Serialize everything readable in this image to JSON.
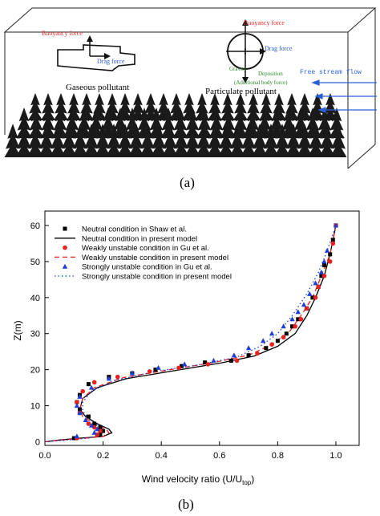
{
  "panel_a": {
    "caption": "(a)",
    "buoyancy_left": "Buoyancy force",
    "drag_left": "Drag force",
    "gaseous_label": "Gaseous pollutant",
    "buoyancy_right": "Buoyancy force",
    "drag_right": "Drag force",
    "gravity_label": "Gravity",
    "deposition_label": "Deposition",
    "additional_label": "(Additional body force)",
    "particulate_label": "Particulate pollutant",
    "free_stream_label": "Free stream flow",
    "colors": {
      "force": "#e0302a",
      "drag": "#2a5fd6",
      "gravity": "#2e8b2e",
      "tree": "#1a1a1a"
    }
  },
  "panel_b": {
    "caption": "(b)"
  },
  "chart_data": {
    "type": "line",
    "xlabel": "Wind velocity ratio (U/U",
    "xlabel_sub": "top",
    "xlabel_end": ")",
    "ylabel": "Z(m)",
    "xlim": [
      0.0,
      1.08
    ],
    "ylim": [
      -1,
      64
    ],
    "xticks": [
      "0.0",
      "0.2",
      "0.4",
      "0.6",
      "0.8",
      "1.0"
    ],
    "yticks": [
      "0",
      "10",
      "20",
      "30",
      "40",
      "50",
      "60"
    ],
    "legend_position": "top-left",
    "series": [
      {
        "name": "Neutral condition in Shaw et al.",
        "marker": "square",
        "color": "#000000",
        "points": [
          [
            0.1,
            1
          ],
          [
            0.19,
            2
          ],
          [
            0.2,
            3
          ],
          [
            0.19,
            4
          ],
          [
            0.17,
            5
          ],
          [
            0.15,
            7
          ],
          [
            0.12,
            9
          ],
          [
            0.11,
            11
          ],
          [
            0.12,
            13
          ],
          [
            0.15,
            16
          ],
          [
            0.22,
            18
          ],
          [
            0.3,
            19
          ],
          [
            0.38,
            20
          ],
          [
            0.47,
            21
          ],
          [
            0.55,
            22
          ],
          [
            0.64,
            22.5
          ],
          [
            0.7,
            24
          ],
          [
            0.76,
            26
          ],
          [
            0.8,
            28
          ],
          [
            0.83,
            30
          ],
          [
            0.85,
            32
          ],
          [
            0.87,
            34
          ],
          [
            0.9,
            37
          ],
          [
            0.92,
            40
          ],
          [
            0.94,
            43
          ],
          [
            0.95,
            46
          ],
          [
            0.96,
            49
          ],
          [
            0.98,
            52
          ],
          [
            0.99,
            56
          ],
          [
            1.0,
            60
          ]
        ]
      },
      {
        "name": "Neutral condition in present model",
        "line": "solid",
        "color": "#000000",
        "points": [
          [
            0.0,
            0
          ],
          [
            0.05,
            0.5
          ],
          [
            0.12,
            1
          ],
          [
            0.2,
            1.5
          ],
          [
            0.23,
            2.5
          ],
          [
            0.22,
            3.5
          ],
          [
            0.18,
            5
          ],
          [
            0.14,
            7
          ],
          [
            0.12,
            9
          ],
          [
            0.13,
            12
          ],
          [
            0.18,
            15
          ],
          [
            0.28,
            17.5
          ],
          [
            0.45,
            19.8
          ],
          [
            0.6,
            21.8
          ],
          [
            0.72,
            23.8
          ],
          [
            0.8,
            26.5
          ],
          [
            0.86,
            30
          ],
          [
            0.9,
            35
          ],
          [
            0.93,
            40
          ],
          [
            0.96,
            46
          ],
          [
            0.98,
            52
          ],
          [
            1.0,
            60
          ]
        ]
      },
      {
        "name": "Weakly unstable condition in Gu et al.",
        "marker": "circle",
        "color": "#e8201e",
        "points": [
          [
            0.11,
            1
          ],
          [
            0.18,
            2
          ],
          [
            0.19,
            3
          ],
          [
            0.17,
            4
          ],
          [
            0.15,
            5
          ],
          [
            0.12,
            8
          ],
          [
            0.11,
            11
          ],
          [
            0.13,
            14
          ],
          [
            0.17,
            16.5
          ],
          [
            0.25,
            18
          ],
          [
            0.36,
            19.5
          ],
          [
            0.46,
            20.5
          ],
          [
            0.56,
            21.5
          ],
          [
            0.66,
            22.5
          ],
          [
            0.73,
            24.5
          ],
          [
            0.78,
            27
          ],
          [
            0.82,
            29
          ],
          [
            0.86,
            32
          ],
          [
            0.88,
            34
          ],
          [
            0.9,
            37
          ],
          [
            0.93,
            40
          ],
          [
            0.94,
            43
          ],
          [
            0.96,
            46
          ],
          [
            0.98,
            50
          ],
          [
            0.99,
            55
          ],
          [
            1.0,
            60
          ]
        ]
      },
      {
        "name": "Weakly unstable condition in present model",
        "line": "dashed",
        "color": "#e8201e",
        "points": [
          [
            0.0,
            0
          ],
          [
            0.06,
            0.5
          ],
          [
            0.14,
            1
          ],
          [
            0.2,
            1.5
          ],
          [
            0.22,
            2.5
          ],
          [
            0.21,
            3.5
          ],
          [
            0.17,
            5
          ],
          [
            0.13,
            7
          ],
          [
            0.12,
            9
          ],
          [
            0.13,
            12
          ],
          [
            0.17,
            15
          ],
          [
            0.27,
            17.8
          ],
          [
            0.43,
            20
          ],
          [
            0.58,
            22
          ],
          [
            0.7,
            24
          ],
          [
            0.78,
            27
          ],
          [
            0.84,
            30.5
          ],
          [
            0.88,
            35
          ],
          [
            0.92,
            40
          ],
          [
            0.95,
            46
          ],
          [
            0.98,
            52
          ],
          [
            1.0,
            60
          ]
        ]
      },
      {
        "name": "Strongly unstable condition in Gu et al.",
        "marker": "triangle",
        "color": "#1f3fd6",
        "points": [
          [
            0.11,
            1.5
          ],
          [
            0.17,
            2.5
          ],
          [
            0.18,
            3.5
          ],
          [
            0.16,
            4.5
          ],
          [
            0.14,
            6
          ],
          [
            0.12,
            8
          ],
          [
            0.11,
            10
          ],
          [
            0.12,
            12.5
          ],
          [
            0.16,
            15
          ],
          [
            0.22,
            17.5
          ],
          [
            0.3,
            19
          ],
          [
            0.39,
            20.5
          ],
          [
            0.48,
            21.5
          ],
          [
            0.58,
            22.5
          ],
          [
            0.65,
            24
          ],
          [
            0.7,
            26
          ],
          [
            0.75,
            28
          ],
          [
            0.78,
            30
          ],
          [
            0.82,
            32
          ],
          [
            0.85,
            34
          ],
          [
            0.87,
            36
          ],
          [
            0.89,
            38
          ],
          [
            0.91,
            41
          ],
          [
            0.93,
            44
          ],
          [
            0.95,
            47
          ],
          [
            0.96,
            50
          ],
          [
            0.97,
            53
          ],
          [
            1.0,
            60
          ]
        ]
      },
      {
        "name": "Strongly unstable condition in present model",
        "line": "dotted",
        "color": "#1f3fd6",
        "points": [
          [
            0.0,
            0
          ],
          [
            0.08,
            0.5
          ],
          [
            0.15,
            1
          ],
          [
            0.19,
            2
          ],
          [
            0.2,
            3
          ],
          [
            0.18,
            4.5
          ],
          [
            0.15,
            6.5
          ],
          [
            0.13,
            8.5
          ],
          [
            0.13,
            11
          ],
          [
            0.16,
            14
          ],
          [
            0.24,
            17
          ],
          [
            0.38,
            19.5
          ],
          [
            0.54,
            21.5
          ],
          [
            0.66,
            23.5
          ],
          [
            0.74,
            26.5
          ],
          [
            0.8,
            30
          ],
          [
            0.85,
            35
          ],
          [
            0.9,
            41
          ],
          [
            0.94,
            47
          ],
          [
            0.97,
            53
          ],
          [
            1.0,
            60
          ]
        ]
      }
    ]
  }
}
